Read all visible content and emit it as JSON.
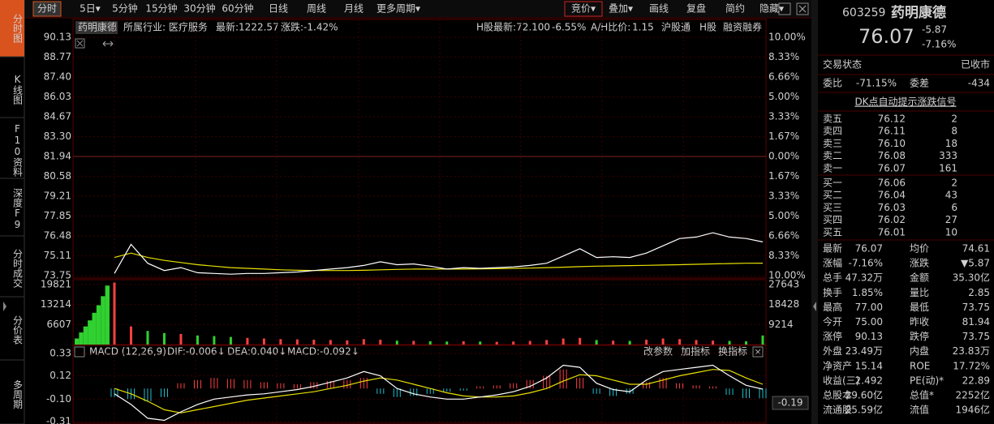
{
  "toolbar": {
    "tabs": [
      "分时",
      "5日▾",
      "5分钟",
      "15分钟",
      "30分钟",
      "60分钟",
      "日线",
      "周线",
      "月线",
      "更多周期▾"
    ],
    "tools": [
      "竞价▾",
      "叠加▾",
      "画线",
      "复盘",
      "简约",
      "隐藏▾"
    ]
  },
  "side_tabs": [
    "分时图",
    "K线图",
    "F10资料",
    "深度F9",
    "分时成交",
    "分价表",
    "多周期"
  ],
  "info": {
    "name": "药明康德",
    "industry": "所属行业: 医疗服务",
    "index_latest": "最新:1222.57",
    "index_change": "涨跌:-1.42%",
    "h_latest": "H股最新:72.100",
    "h_change": "-6.55%",
    "ah_label": "A/H比价:",
    "ah_value": "1.15",
    "tags": [
      "沪股通",
      "H股",
      "融资融券"
    ]
  },
  "intraday": {
    "type": "line",
    "ylim": [
      73.75,
      90.13
    ],
    "yticks": [
      90.13,
      88.77,
      {
        "value": 87.4,
        "label": "87.40"
      },
      86.03,
      84.67,
      {
        "value": 83.3,
        "label": "83.30"
      },
      81.94,
      80.58,
      79.21,
      77.85,
      76.48,
      75.11,
      73.75
    ],
    "pct_labels": [
      "10.00%",
      "8.33%",
      "6.66%",
      "5.00%",
      "3.33%",
      "1.67%",
      "0.00%",
      "1.67%",
      "3.33%",
      "5.00%",
      "6.66%",
      "8.33%",
      "10.00%"
    ],
    "price": [
      73.9,
      75.9,
      74.6,
      74.1,
      74.3,
      73.95,
      73.9,
      73.85,
      73.9,
      73.9,
      73.95,
      74.0,
      74.1,
      74.2,
      74.3,
      74.45,
      74.7,
      74.5,
      74.55,
      74.4,
      74.2,
      74.3,
      74.25,
      74.3,
      74.35,
      74.45,
      74.6,
      75.1,
      75.6,
      75.0,
      75.05,
      75.0,
      75.3,
      75.8,
      76.3,
      76.4,
      76.7,
      76.4,
      76.3,
      76.07
    ],
    "avg": [
      75.0,
      75.3,
      75.0,
      74.8,
      74.65,
      74.5,
      74.4,
      74.3,
      74.25,
      74.2,
      74.15,
      74.12,
      74.1,
      74.1,
      74.1,
      74.12,
      74.15,
      74.18,
      74.2,
      74.2,
      74.2,
      74.2,
      74.22,
      74.23,
      74.25,
      74.27,
      74.3,
      74.33,
      74.37,
      74.4,
      74.42,
      74.44,
      74.46,
      74.48,
      74.5,
      74.53,
      74.56,
      74.58,
      74.6,
      74.61
    ],
    "price_color": "#ffffff",
    "avg_color": "#e8e000"
  },
  "volume": {
    "type": "bar",
    "ylim": [
      0,
      21450
    ],
    "yticks": [
      19821,
      13214,
      6607
    ],
    "right_labels": [
      "27643",
      "18428",
      "9214"
    ],
    "auction": [
      2000,
      4000,
      6000,
      8000,
      10500,
      13000,
      16000,
      19500
    ],
    "values": [
      20500,
      6000,
      4500,
      3800,
      3500,
      3000,
      2800,
      2500,
      2200,
      2000,
      1800,
      1700,
      1600,
      1500,
      1400,
      1800,
      1600,
      1300,
      1200,
      1100,
      1000,
      1100,
      1000,
      900,
      1000,
      1200,
      1500,
      2000,
      2200,
      1500,
      1300,
      1200,
      1600,
      2000,
      1800,
      1500,
      1300,
      1200,
      1100,
      3000
    ],
    "up_color": "#ff4040",
    "down_color": "#30d030"
  },
  "macd": {
    "type": "bar",
    "title": "MACD (12,26,9)",
    "dif_label": "DIF:-0.006↓",
    "dea_label": "DEA:0.040↓",
    "macd_label": "MACD:-0.092↓",
    "buttons": [
      "改参数",
      "加指标",
      "换指标"
    ],
    "current": "-0.19",
    "ylim": [
      -0.327,
      0.407
    ],
    "yticks": [
      0.33,
      0.12,
      {
        "value": -0.1,
        "label": "-0.10"
      },
      -0.31
    ],
    "hist": [
      -0.08,
      -0.1,
      -0.12,
      -0.08,
      0.05,
      0.08,
      0.1,
      0.09,
      0.08,
      0.06,
      0.05,
      0.04,
      0.06,
      0.07,
      0.08,
      0.1,
      -0.05,
      -0.08,
      -0.07,
      -0.05,
      -0.03,
      -0.02,
      0.02,
      0.03,
      0.05,
      0.08,
      0.12,
      0.18,
      0.1,
      -0.05,
      -0.07,
      -0.05,
      0.06,
      0.1,
      0.05,
      0.03,
      0.02,
      -0.06,
      -0.09,
      -0.092
    ],
    "dif": [
      -0.05,
      -0.15,
      -0.28,
      -0.3,
      -0.22,
      -0.15,
      -0.1,
      -0.08,
      -0.06,
      -0.05,
      -0.03,
      -0.01,
      0.02,
      0.06,
      0.1,
      0.16,
      0.12,
      0.0,
      -0.05,
      -0.08,
      -0.1,
      -0.1,
      -0.08,
      -0.06,
      -0.03,
      0.02,
      0.1,
      0.22,
      0.2,
      0.05,
      -0.01,
      -0.03,
      0.08,
      0.16,
      0.18,
      0.2,
      0.22,
      0.12,
      0.03,
      -0.006
    ],
    "dea": [
      0.0,
      -0.05,
      -0.12,
      -0.2,
      -0.23,
      -0.2,
      -0.17,
      -0.14,
      -0.11,
      -0.09,
      -0.07,
      -0.05,
      -0.03,
      0.0,
      0.03,
      0.07,
      0.1,
      0.08,
      0.04,
      0.0,
      -0.04,
      -0.07,
      -0.08,
      -0.08,
      -0.07,
      -0.04,
      0.0,
      0.07,
      0.13,
      0.12,
      0.08,
      0.04,
      0.04,
      0.08,
      0.12,
      0.15,
      0.18,
      0.17,
      0.1,
      0.04
    ],
    "pos_color": "#ff4040",
    "neg_color": "#20c0d0",
    "dif_color": "#ffffff",
    "dea_color": "#e8e000"
  },
  "quote": {
    "code": "603259",
    "name": "药明康德",
    "price": "76.07",
    "change": "-5.87",
    "change_pct": "-7.16%",
    "status_label": "交易状态",
    "status": "已收市",
    "wb_label": "委比",
    "wb": "-71.15%",
    "wc_label": "委差",
    "wc": "-434",
    "signal": "DK点自动提示涨跌信号",
    "asks": [
      [
        "卖五",
        "76.12",
        "2"
      ],
      [
        "卖四",
        "76.11",
        "8"
      ],
      [
        "卖三",
        "76.10",
        "18"
      ],
      [
        "卖二",
        "76.08",
        "333"
      ],
      [
        "卖一",
        "76.07",
        "161"
      ]
    ],
    "bids": [
      [
        "买一",
        "76.06",
        "2"
      ],
      [
        "买二",
        "76.04",
        "43"
      ],
      [
        "买三",
        "76.03",
        "6"
      ],
      [
        "买四",
        "76.02",
        "27"
      ],
      [
        "买五",
        "76.01",
        "10"
      ]
    ],
    "stats": [
      [
        {
          "label": "最新",
          "value": "76.07",
          "color": "#30e030"
        },
        {
          "label": "均价",
          "value": "74.61",
          "color": "#30e030"
        }
      ],
      [
        {
          "label": "涨幅",
          "value": "-7.16%",
          "color": "#30e030"
        },
        {
          "label": "涨跌",
          "value": "▼5.87",
          "color": "#30e030"
        }
      ],
      [
        {
          "label": "总手",
          "value": "47.32万",
          "color": "#e0e0e0"
        },
        {
          "label": "金额",
          "value": "35.30亿",
          "color": "#20d0f0"
        }
      ],
      [
        {
          "label": "换手",
          "value": "1.85%",
          "color": "#e0e0e0"
        },
        {
          "label": "量比",
          "value": "2.85",
          "color": "#ff4040"
        }
      ],
      [
        {
          "label": "最高",
          "value": "77.00",
          "color": "#30e030"
        },
        {
          "label": "最低",
          "value": "73.75",
          "color": "#30e030"
        }
      ],
      [
        {
          "label": "今开",
          "value": "75.00",
          "color": "#30e030"
        },
        {
          "label": "昨收",
          "value": "81.94",
          "color": "#e0e0e0"
        }
      ],
      [
        {
          "label": "涨停",
          "value": "90.13",
          "color": "#ff4040"
        },
        {
          "label": "跌停",
          "value": "73.75",
          "color": "#30e030"
        }
      ],
      [
        {
          "label": "外盘",
          "value": "23.49万",
          "color": "#ff4040"
        },
        {
          "label": "内盘",
          "value": "23.83万",
          "color": "#30e030"
        }
      ],
      [
        {
          "label": "净资产",
          "value": "15.14",
          "color": "#e0e0e0"
        },
        {
          "label": "ROE",
          "value": "17.72%",
          "color": "#e0e0e0"
        }
      ],
      [
        {
          "label": "收益(三)",
          "value": "2.492",
          "color": "#e0e0e0"
        },
        {
          "label": "PE(动)*",
          "value": "22.89",
          "color": "#e0e0e0"
        }
      ],
      [
        {
          "label": "总股本",
          "value": "29.60亿",
          "color": "#e0e0e0"
        },
        {
          "label": "总值*",
          "value": "2252亿",
          "color": "#e0e0e0"
        }
      ],
      [
        {
          "label": "流通股",
          "value": "25.59亿",
          "color": "#e0e0e0"
        },
        {
          "label": "流值",
          "value": "1946亿",
          "color": "#e0e0e0"
        }
      ]
    ]
  }
}
